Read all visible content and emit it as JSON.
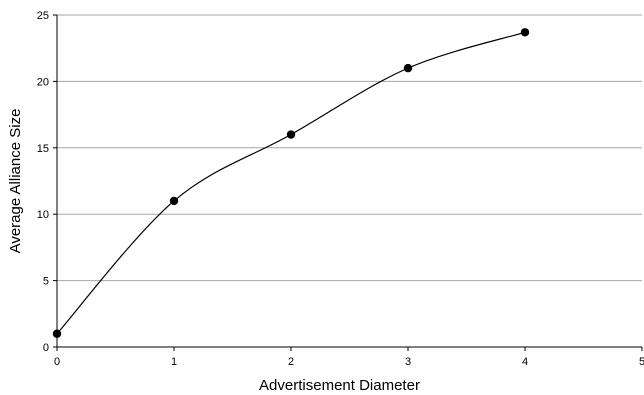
{
  "chart_data": {
    "type": "line",
    "title": "",
    "xlabel": "Advertisement Diameter",
    "ylabel": "Average Alliance Size",
    "xlim": [
      0,
      5
    ],
    "ylim": [
      0,
      25
    ],
    "x_ticks": [
      0,
      1,
      2,
      3,
      4,
      5
    ],
    "y_ticks": [
      0,
      5,
      10,
      15,
      20,
      25
    ],
    "grid": "horizontal",
    "legend": "none",
    "smoothed": true,
    "colors": {
      "line": "#000000",
      "marker": "#000000",
      "grid": "#a6a6a6",
      "axis": "#000000"
    },
    "series": [
      {
        "x": [
          0,
          1,
          2,
          3,
          4
        ],
        "values": [
          1,
          11,
          16,
          21,
          23.7
        ]
      }
    ]
  }
}
